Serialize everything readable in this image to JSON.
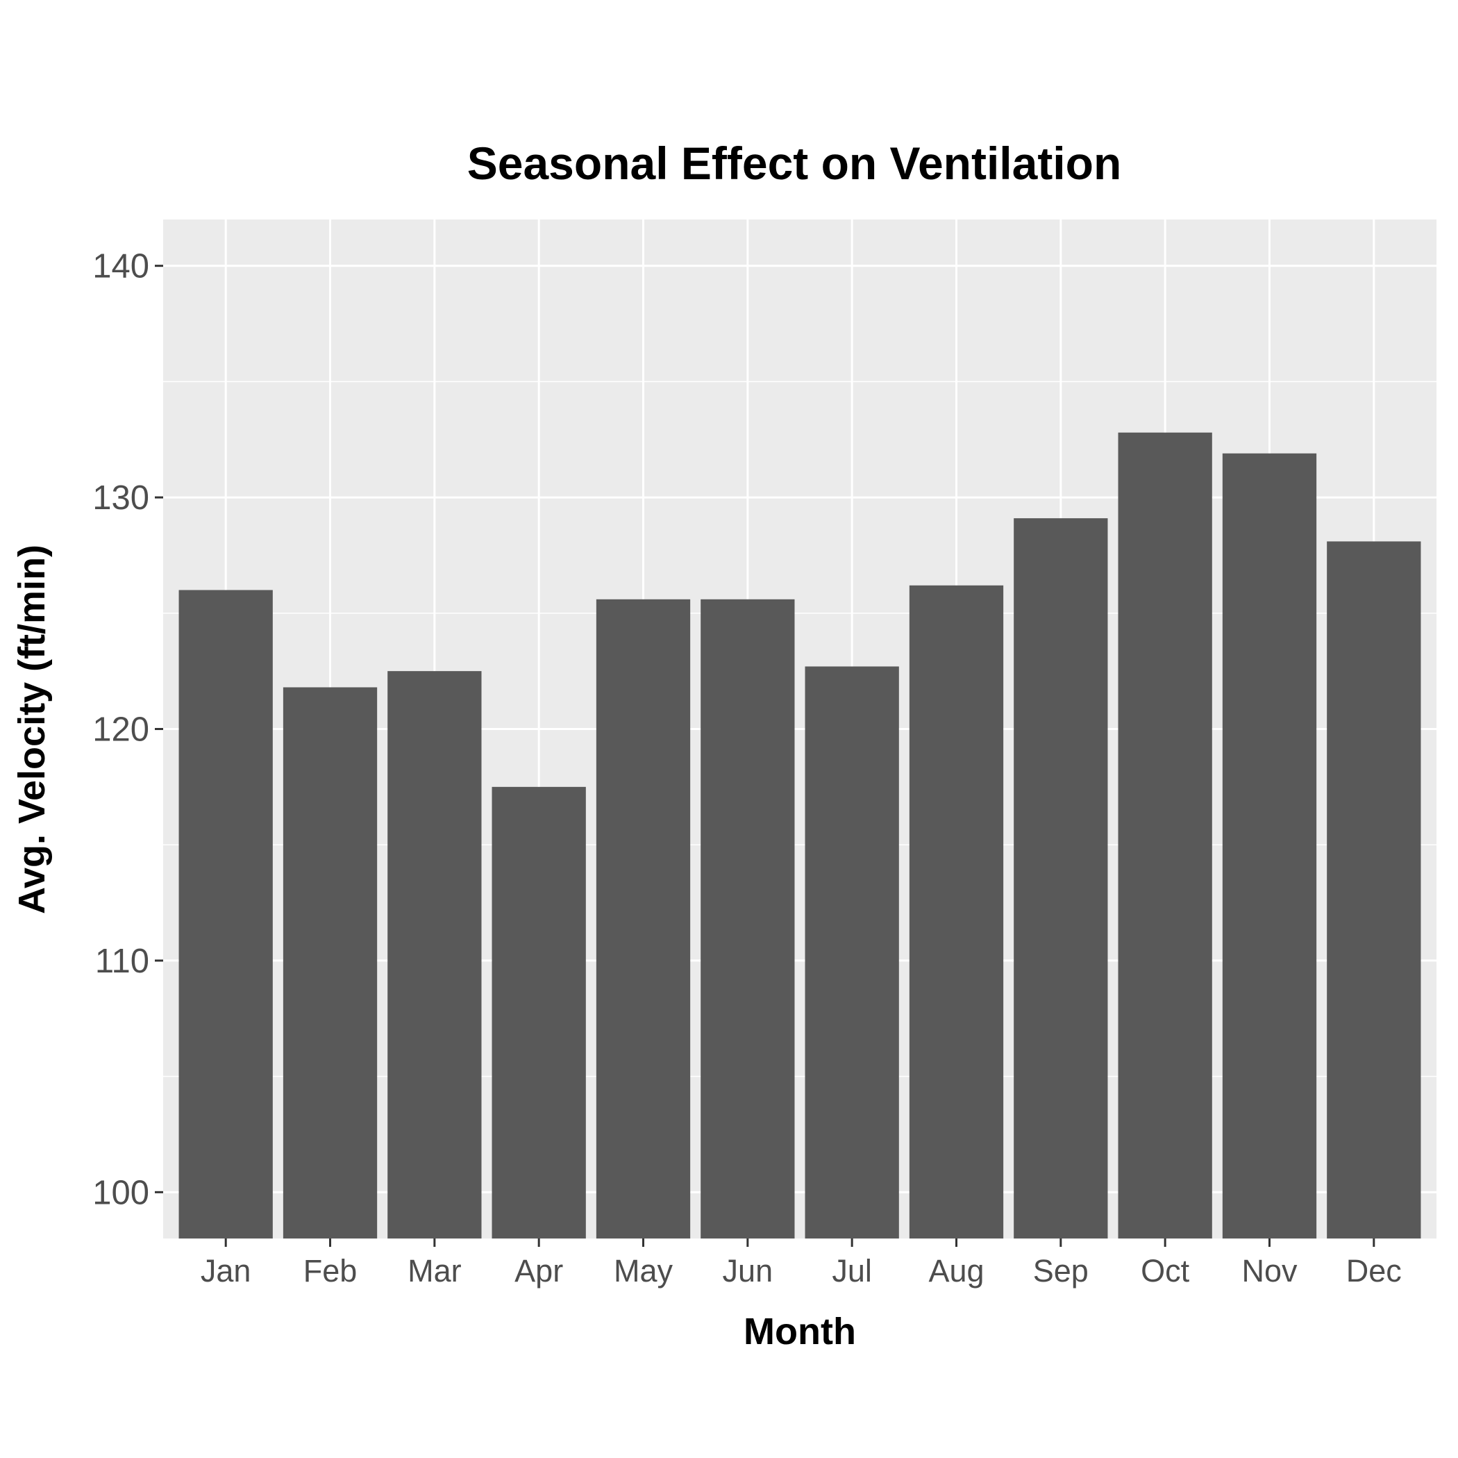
{
  "chart_data": {
    "type": "bar",
    "title": "Seasonal Effect on Ventilation",
    "xlabel": "Month",
    "ylabel": "Avg. Velocity (ft/min)",
    "categories": [
      "Jan",
      "Feb",
      "Mar",
      "Apr",
      "May",
      "Jun",
      "Jul",
      "Aug",
      "Sep",
      "Oct",
      "Nov",
      "Dec"
    ],
    "values": [
      126.0,
      121.8,
      122.5,
      117.5,
      125.6,
      125.6,
      122.7,
      126.2,
      129.1,
      132.8,
      131.9,
      128.1
    ],
    "ylim": [
      98,
      142
    ],
    "yticks": [
      100,
      110,
      120,
      130,
      140
    ],
    "grid": true,
    "colors": {
      "bar": "#595959",
      "panel": "#ebebeb",
      "grid": "#ffffff"
    }
  }
}
